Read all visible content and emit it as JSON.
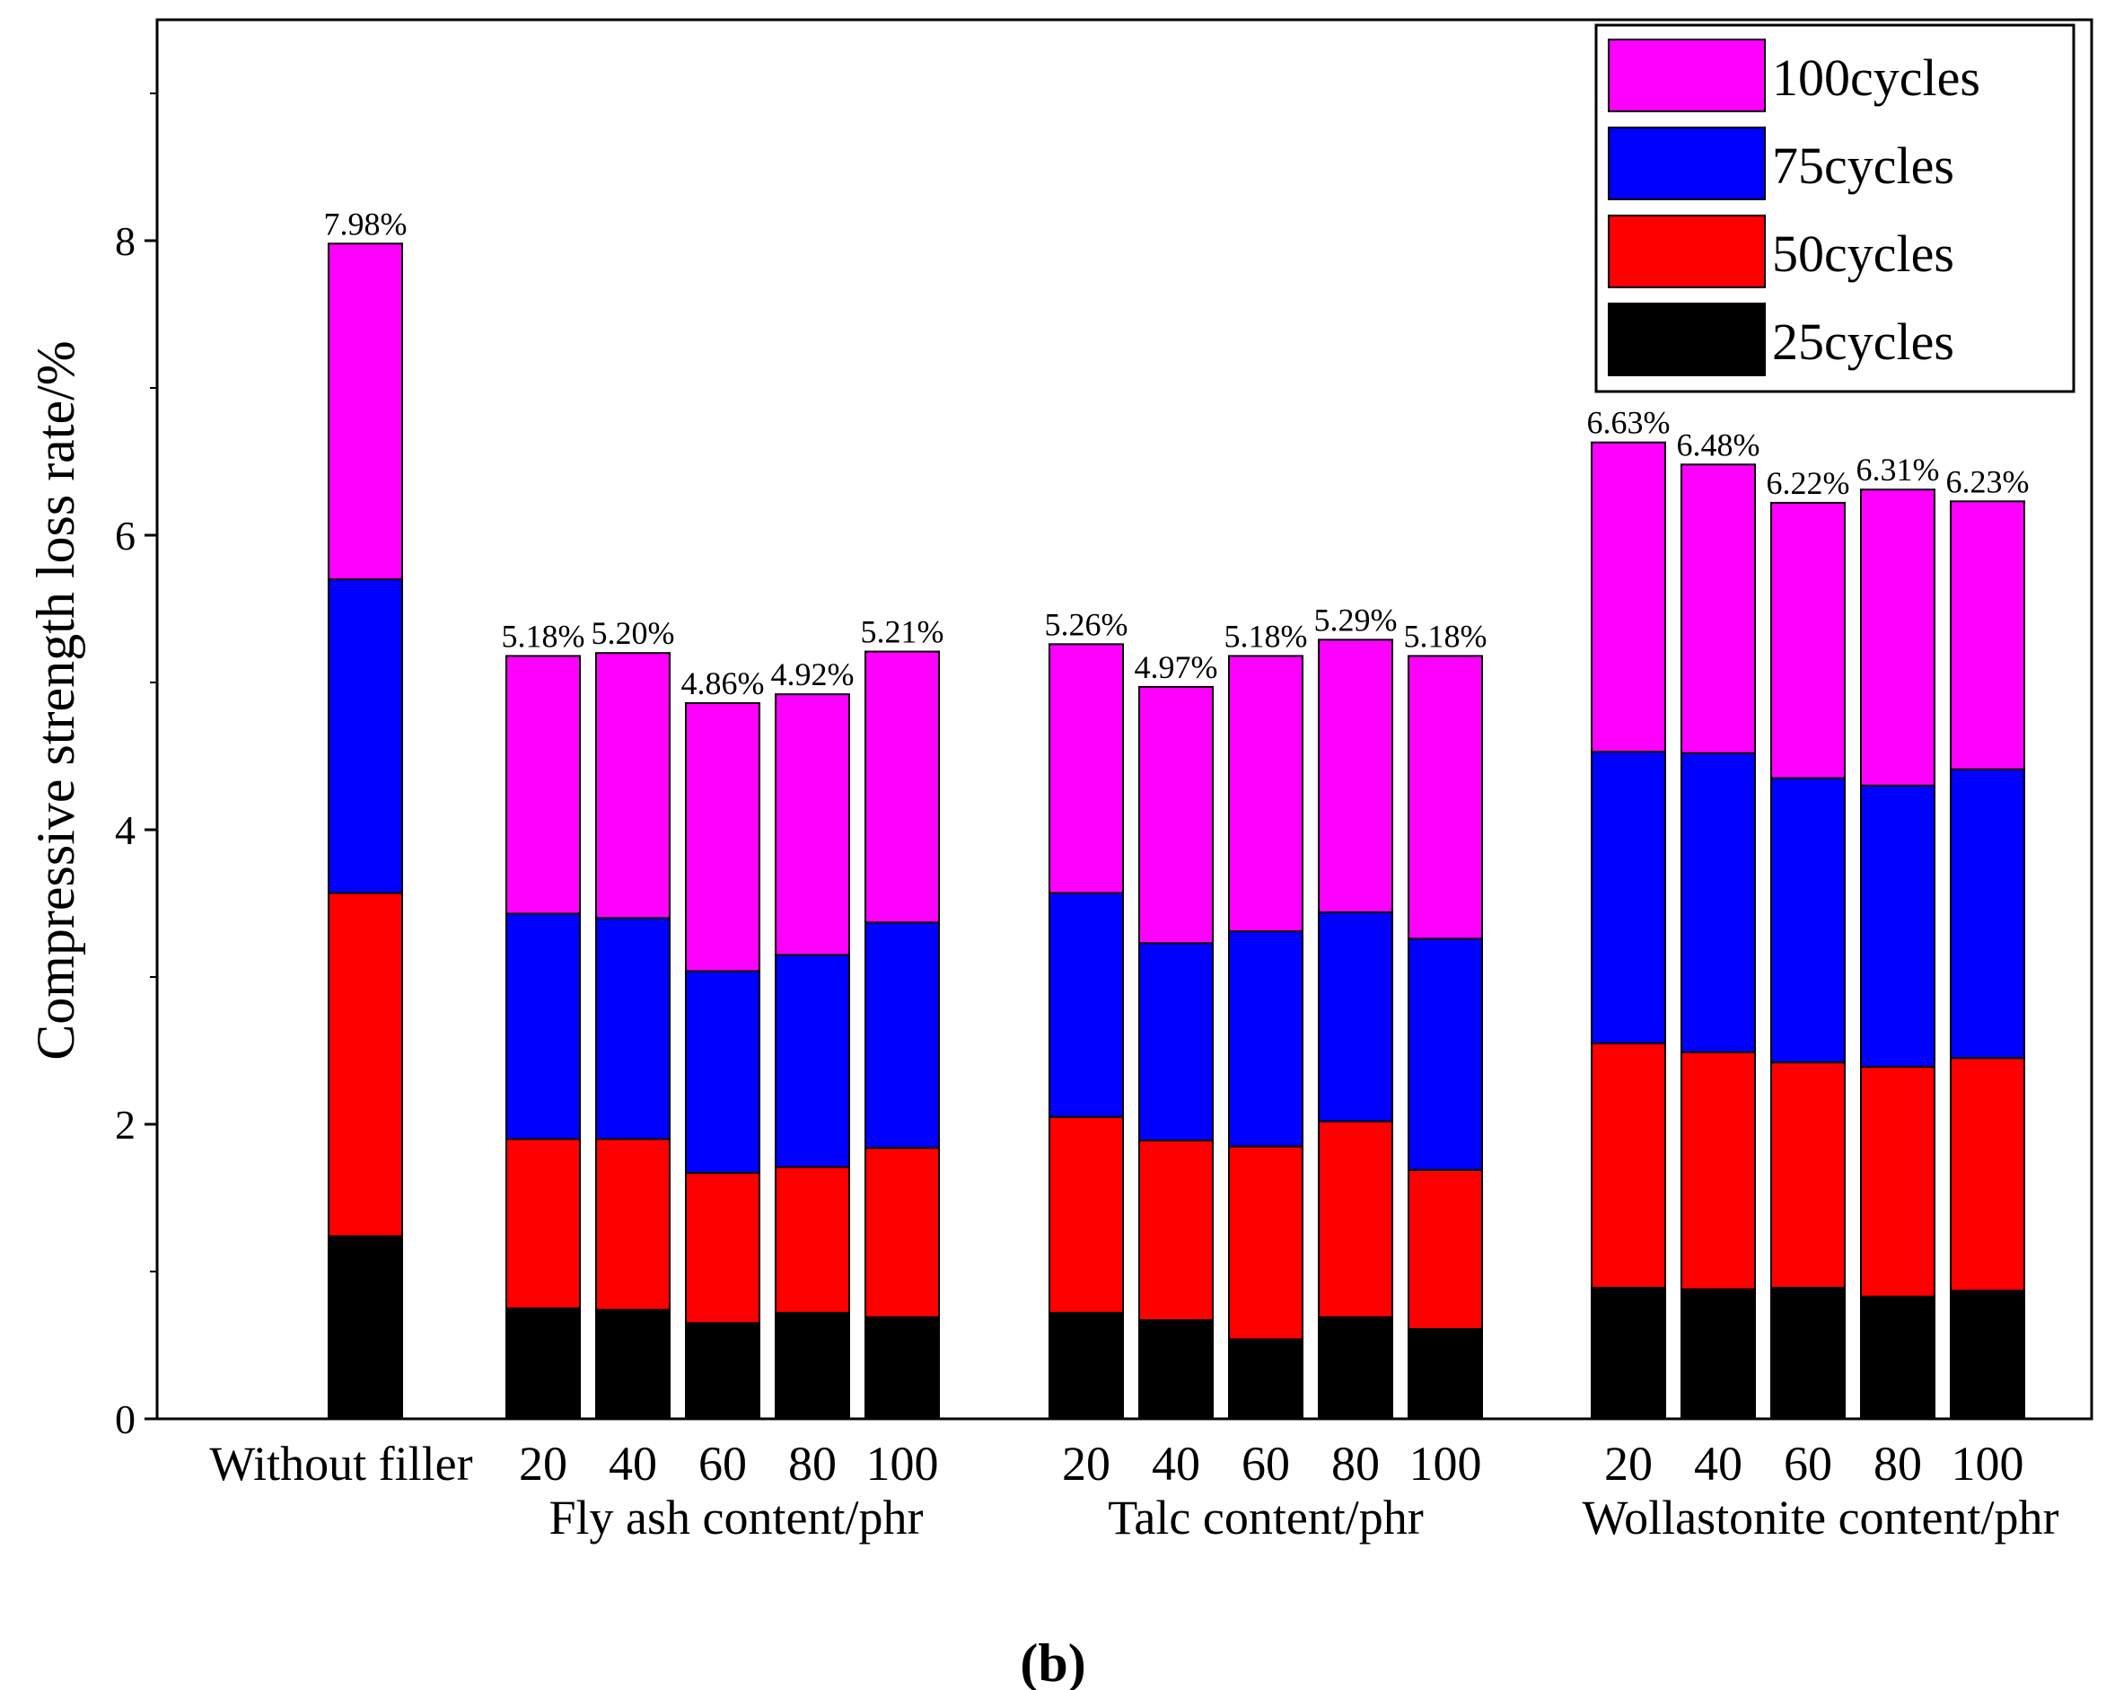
{
  "chart_data": {
    "type": "bar",
    "stacked": true,
    "ylabel": "Compressive strength loss rate/%",
    "ylim": [
      0,
      9.5
    ],
    "yticks": [
      0,
      2,
      4,
      6,
      8
    ],
    "caption_open": "(",
    "caption_letter": "b",
    "caption_close": ")",
    "legend": [
      "100cycles",
      "75cycles",
      "50cycles",
      "25cycles"
    ],
    "colors": {
      "25cycles": "#000000",
      "50cycles": "#ff0000",
      "75cycles": "#0000ff",
      "100cycles": "#ff00ff"
    },
    "groups": [
      {
        "label": "",
        "categories": [
          "Without filler"
        ]
      },
      {
        "label": "Fly ash content/phr",
        "categories": [
          "20",
          "40",
          "60",
          "80",
          "100"
        ]
      },
      {
        "label": "Talc content/phr",
        "categories": [
          "20",
          "40",
          "60",
          "80",
          "100"
        ]
      },
      {
        "label": "Wollastonite content/phr",
        "categories": [
          "20",
          "40",
          "60",
          "80",
          "100"
        ]
      }
    ],
    "series": [
      {
        "name": "25cycles",
        "values": [
          1.24,
          0.75,
          0.74,
          0.65,
          0.72,
          0.69,
          0.72,
          0.67,
          0.54,
          0.69,
          0.61,
          0.89,
          0.88,
          0.89,
          0.83,
          0.87
        ]
      },
      {
        "name": "50cycles",
        "values": [
          2.33,
          1.15,
          1.16,
          1.02,
          0.99,
          1.15,
          1.33,
          1.22,
          1.31,
          1.33,
          1.08,
          1.66,
          1.61,
          1.53,
          1.56,
          1.58
        ]
      },
      {
        "name": "75cycles",
        "values": [
          2.13,
          1.53,
          1.5,
          1.37,
          1.44,
          1.53,
          1.52,
          1.34,
          1.46,
          1.42,
          1.57,
          1.98,
          2.03,
          1.93,
          1.91,
          1.96
        ]
      },
      {
        "name": "100cycles",
        "values": [
          2.28,
          1.75,
          1.8,
          1.82,
          1.77,
          1.84,
          1.69,
          1.74,
          1.87,
          1.85,
          1.92,
          2.1,
          1.96,
          1.87,
          2.01,
          1.82
        ]
      }
    ],
    "totals_labels": [
      "7.98%",
      "5.18%",
      "5.20%",
      "4.86%",
      "4.92%",
      "5.21%",
      "5.26%",
      "4.97%",
      "5.18%",
      "5.29%",
      "5.18%",
      "6.63%",
      "6.48%",
      "6.22%",
      "6.31%",
      "6.23%"
    ]
  }
}
